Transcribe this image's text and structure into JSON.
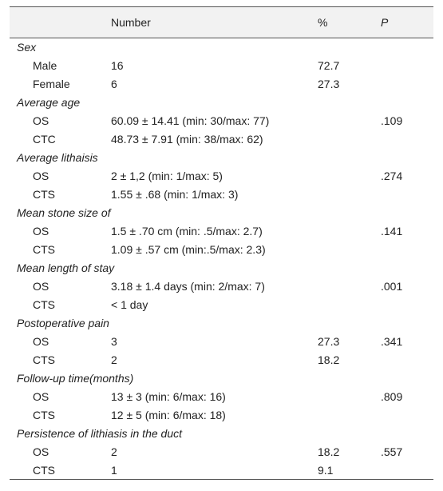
{
  "headers": {
    "blank": "",
    "number": "Number",
    "percent": "%",
    "p": "P"
  },
  "groups": [
    {
      "title": "Sex",
      "rows": [
        {
          "label": "Male",
          "number": "16",
          "percent": "72.7",
          "p": ""
        },
        {
          "label": "Female",
          "number": "6",
          "percent": "27.3",
          "p": ""
        }
      ]
    },
    {
      "title": "Average age",
      "rows": [
        {
          "label": "OS",
          "number": "60.09 ± 14.41 (min: 30/max: 77)",
          "percent": "",
          "p": ".109"
        },
        {
          "label": "CTC",
          "number": "48.73 ± 7.91 (min: 38/max: 62)",
          "percent": "",
          "p": ""
        }
      ]
    },
    {
      "title": "Average lithaisis",
      "rows": [
        {
          "label": "OS",
          "number": "2 ± 1,2 (min: 1/max: 5)",
          "percent": "",
          "p": ".274"
        },
        {
          "label": "CTS",
          "number": "1.55 ± .68 (min: 1/max: 3)",
          "percent": "",
          "p": ""
        }
      ]
    },
    {
      "title": "Mean stone size of",
      "rows": [
        {
          "label": "OS",
          "number": "1.5 ± .70 cm (min: .5/max: 2.7)",
          "percent": "",
          "p": ".141"
        },
        {
          "label": "CTS",
          "number": "1.09 ± .57 cm (min:.5/max: 2.3)",
          "percent": "",
          "p": ""
        }
      ]
    },
    {
      "title": "Mean length of stay",
      "rows": [
        {
          "label": "OS",
          "number": "3.18 ± 1.4 days (min: 2/max: 7)",
          "percent": "",
          "p": ".001"
        },
        {
          "label": "CTS",
          "number": "< 1 day",
          "percent": "",
          "p": ""
        }
      ]
    },
    {
      "title": "Postoperative pain",
      "rows": [
        {
          "label": "OS",
          "number": "3",
          "percent": "27.3",
          "p": ".341"
        },
        {
          "label": "CTS",
          "number": "2",
          "percent": "18.2",
          "p": ""
        }
      ]
    },
    {
      "title": "Follow-up time(months)",
      "rows": [
        {
          "label": "OS",
          "number": "13 ± 3 (min: 6/max: 16)",
          "percent": "",
          "p": ".809"
        },
        {
          "label": "CTS",
          "number": "12 ± 5 (min: 6/max: 18)",
          "percent": "",
          "p": ""
        }
      ]
    },
    {
      "title": "Persistence of lithiasis in the duct",
      "rows": [
        {
          "label": "OS",
          "number": "2",
          "percent": "18.2",
          "p": ".557"
        },
        {
          "label": "CTS",
          "number": "1",
          "percent": "9.1",
          "p": ""
        }
      ]
    }
  ]
}
